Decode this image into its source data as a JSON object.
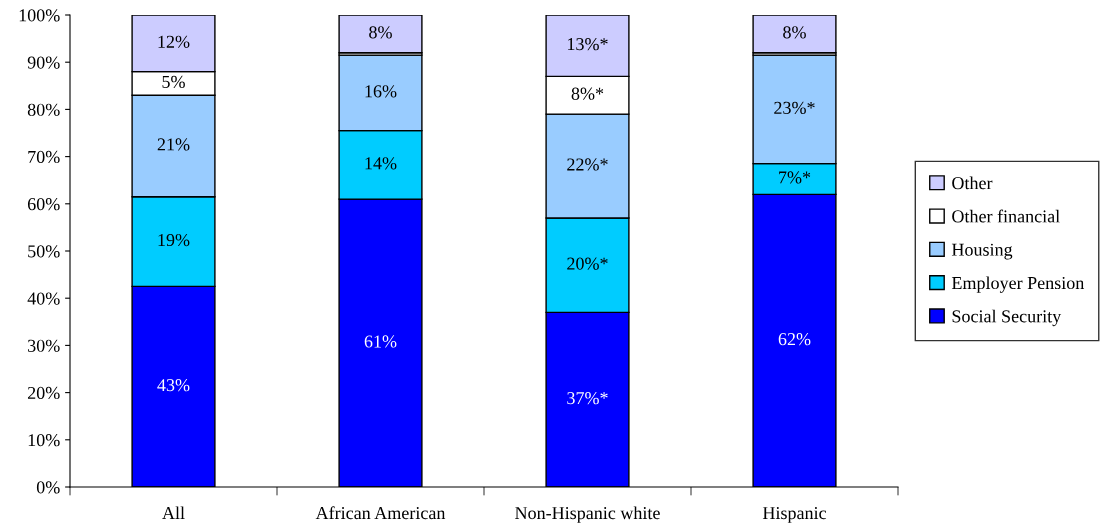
{
  "chart_data": {
    "type": "bar",
    "stacked": true,
    "categories": [
      "All",
      "African American",
      "Non-Hispanic white",
      "Hispanic"
    ],
    "series": [
      {
        "name": "Social Security",
        "color": "#0000ff",
        "values": [
          42.5,
          61,
          37,
          62
        ],
        "value_labels": [
          "43%",
          "61%",
          "37%*",
          "62%"
        ]
      },
      {
        "name": "Employer Pension",
        "color": "#00ccff",
        "values": [
          19,
          14.5,
          20,
          6.5
        ],
        "value_labels": [
          "19%",
          "14%",
          "20%*",
          "7%*"
        ]
      },
      {
        "name": "Housing",
        "color": "#99ccff",
        "values": [
          21.5,
          16,
          22,
          23
        ],
        "value_labels": [
          "21%",
          "16%",
          "22%*",
          "23%*"
        ]
      },
      {
        "name": "Other financial",
        "color": "#ffffff",
        "values": [
          5,
          0.5,
          8,
          0.5
        ],
        "value_labels": [
          "5%",
          null,
          "8%*",
          null
        ]
      },
      {
        "name": "Other",
        "color": "#ccccff",
        "values": [
          12,
          8,
          13,
          8
        ],
        "value_labels": [
          "12%",
          "8%",
          "13%*",
          "8%"
        ]
      }
    ],
    "ylim": [
      0,
      100
    ],
    "yticks": [
      {
        "value": 0,
        "label": "0%"
      },
      {
        "value": 10,
        "label": "10%"
      },
      {
        "value": 20,
        "label": "20%"
      },
      {
        "value": 30,
        "label": "30%"
      },
      {
        "value": 40,
        "label": "40%"
      },
      {
        "value": 50,
        "label": "50%"
      },
      {
        "value": 60,
        "label": "60%"
      },
      {
        "value": 70,
        "label": "70%"
      },
      {
        "value": 80,
        "label": "80%"
      },
      {
        "value": 90,
        "label": "90%"
      },
      {
        "value": 100,
        "label": "100%"
      }
    ],
    "grid": false,
    "legend": "right"
  }
}
